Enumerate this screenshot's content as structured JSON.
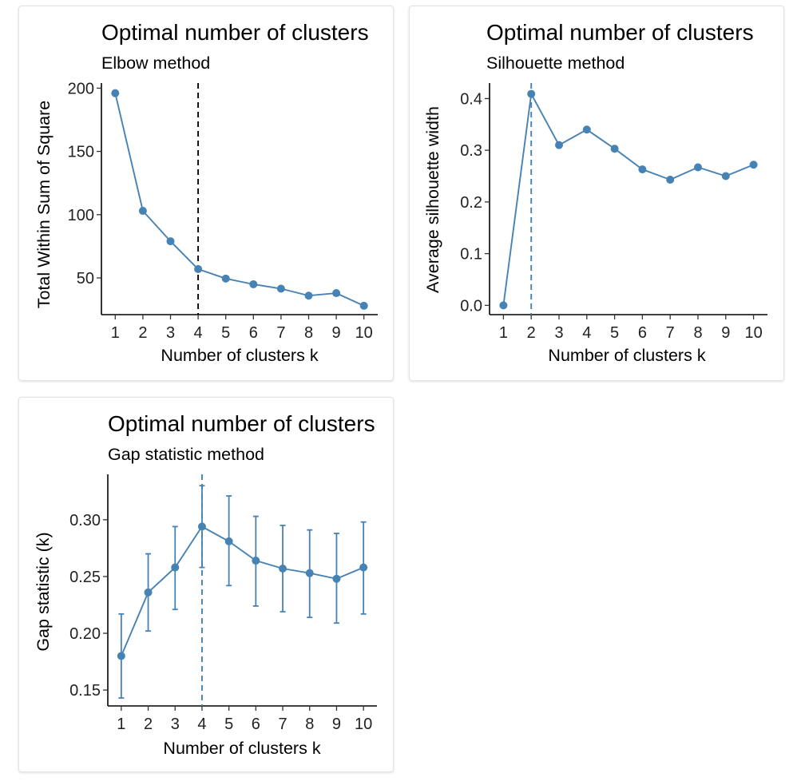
{
  "accent": "#4682b4",
  "panels": [
    {
      "id": "elbow",
      "title": "Optimal number of clusters",
      "subtitle": "Elbow method",
      "xlabel": "Number of clusters k",
      "ylabel": "Total Within Sum of Square"
    },
    {
      "id": "sil",
      "title": "Optimal number of clusters",
      "subtitle": "Silhouette method",
      "xlabel": "Number of clusters k",
      "ylabel": "Average silhouette width"
    },
    {
      "id": "gap",
      "title": "Optimal number of clusters",
      "subtitle": "Gap statistic method",
      "xlabel": "Number of clusters k",
      "ylabel": "Gap statistic (k)"
    }
  ],
  "chart_data": [
    {
      "type": "line",
      "title": "Optimal number of clusters",
      "subtitle": "Elbow method",
      "xlabel": "Number of clusters k",
      "ylabel": "Total Within Sum of Square",
      "x": [
        1,
        2,
        3,
        4,
        5,
        6,
        7,
        8,
        9,
        10
      ],
      "y": [
        196,
        103,
        79,
        57,
        49.5,
        45,
        41.5,
        36,
        38,
        28
      ],
      "yticks": [
        50,
        100,
        150,
        200
      ],
      "ylim": [
        21,
        204
      ],
      "xlim": [
        0.5,
        10.5
      ],
      "vline": 4,
      "vline_style": "dashed-black",
      "color": "#4682b4",
      "grid": false,
      "legend": "none"
    },
    {
      "type": "line",
      "title": "Optimal number of clusters",
      "subtitle": "Silhouette method",
      "xlabel": "Number of clusters k",
      "ylabel": "Average silhouette width",
      "x": [
        1,
        2,
        3,
        4,
        5,
        6,
        7,
        8,
        9,
        10
      ],
      "y": [
        0.0,
        0.409,
        0.31,
        0.34,
        0.303,
        0.263,
        0.243,
        0.267,
        0.25,
        0.272
      ],
      "yticks": [
        0.0,
        0.1,
        0.2,
        0.3,
        0.4
      ],
      "ylim": [
        -0.018,
        0.43
      ],
      "xlim": [
        0.5,
        10.5
      ],
      "vline": 2,
      "vline_style": "dashed-blue",
      "color": "#4682b4",
      "grid": false,
      "legend": "none"
    },
    {
      "type": "line",
      "title": "Optimal number of clusters",
      "subtitle": "Gap statistic method",
      "xlabel": "Number of clusters k",
      "ylabel": "Gap statistic (k)",
      "x": [
        1,
        2,
        3,
        4,
        5,
        6,
        7,
        8,
        9,
        10
      ],
      "y": [
        0.18,
        0.236,
        0.258,
        0.294,
        0.281,
        0.264,
        0.257,
        0.253,
        0.248,
        0.258
      ],
      "ymin": [
        0.143,
        0.202,
        0.221,
        0.258,
        0.242,
        0.224,
        0.219,
        0.214,
        0.209,
        0.217
      ],
      "ymax": [
        0.217,
        0.27,
        0.294,
        0.33,
        0.321,
        0.303,
        0.295,
        0.291,
        0.288,
        0.298
      ],
      "yticks": [
        0.15,
        0.2,
        0.25,
        0.3
      ],
      "ylim": [
        0.136,
        0.34
      ],
      "xlim": [
        0.5,
        10.5
      ],
      "vline": 4,
      "vline_style": "dashed-blue",
      "error_bars": true,
      "color": "#4682b4",
      "grid": false,
      "legend": "none"
    }
  ]
}
